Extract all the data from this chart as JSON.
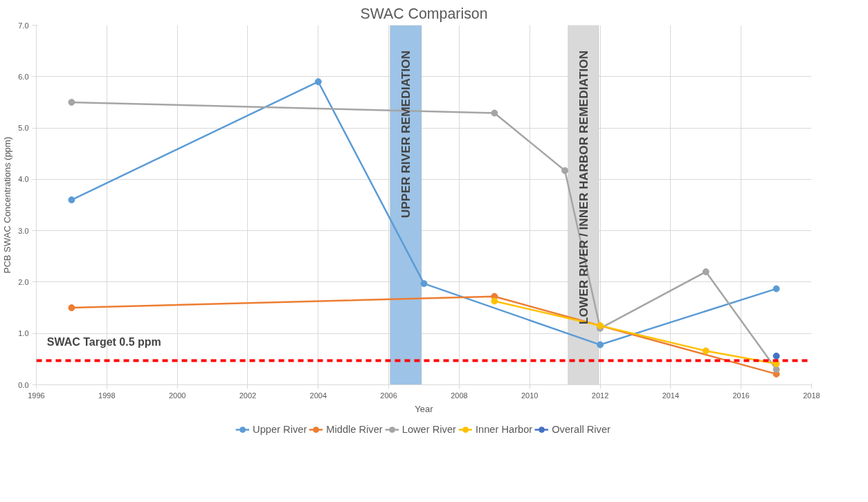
{
  "chart_data": {
    "type": "line",
    "title": "SWAC Comparison",
    "xlabel": "Year",
    "ylabel": "PCB SWAC Concentrations (ppm)",
    "series": [
      {
        "name": "Upper River",
        "color": "#5b9bd5",
        "x": [
          1997,
          2004,
          2007,
          2012,
          2017
        ],
        "values": [
          3.6,
          5.9,
          1.97,
          0.78,
          1.87
        ]
      },
      {
        "name": "Middle River",
        "color": "#ed7d31",
        "x": [
          1997,
          2009,
          2012,
          2017
        ],
        "values": [
          1.5,
          1.72,
          1.15,
          0.21
        ]
      },
      {
        "name": "Lower River",
        "color": "#a5a5a5",
        "x": [
          1997,
          2009,
          2011,
          2012,
          2015,
          2017
        ],
        "values": [
          5.5,
          5.29,
          4.17,
          1.1,
          2.2,
          0.3
        ]
      },
      {
        "name": "Inner Harbor",
        "color": "#ffc000",
        "x": [
          2009,
          2012,
          2015,
          2017
        ],
        "values": [
          1.63,
          1.15,
          0.66,
          0.41
        ]
      },
      {
        "name": "Overall River",
        "color": "#4472c4",
        "x": [
          2017
        ],
        "values": [
          0.56
        ]
      }
    ],
    "xlim": [
      1996,
      2018
    ],
    "xticks": [
      1996,
      1998,
      2000,
      2002,
      2004,
      2006,
      2008,
      2010,
      2012,
      2014,
      2016,
      2018
    ],
    "ylim": [
      0,
      7
    ],
    "yticks": [
      {
        "value": 0,
        "label": "0.0"
      },
      {
        "value": 1,
        "label": "1.0"
      },
      {
        "value": 2,
        "label": "2.0"
      },
      {
        "value": 3,
        "label": "3.0"
      },
      {
        "value": 4,
        "label": "4.0"
      },
      {
        "value": 5,
        "label": "5.0"
      },
      {
        "value": 6,
        "label": "6.0"
      },
      {
        "value": 7,
        "label": "7.0"
      }
    ],
    "ref_lines": [
      {
        "axis": "y",
        "value": 0.47,
        "label": "SWAC Target 0.5 ppm",
        "color": "#ff0000",
        "line_style": "dashed"
      }
    ],
    "bands": [
      {
        "axis": "x",
        "from": 2006.04,
        "to": 2006.93,
        "label": "UPPER RIVER REMEDIATION",
        "color": "#9dc3e6"
      },
      {
        "axis": "x",
        "from": 2011.09,
        "to": 2011.96,
        "label": "LOWER RIVER / INNER HARBOR REMEDIATION",
        "color": "#d9d9d9"
      }
    ],
    "grid": true,
    "legend": "bottom",
    "marker": "circle",
    "line_style": "solid"
  }
}
